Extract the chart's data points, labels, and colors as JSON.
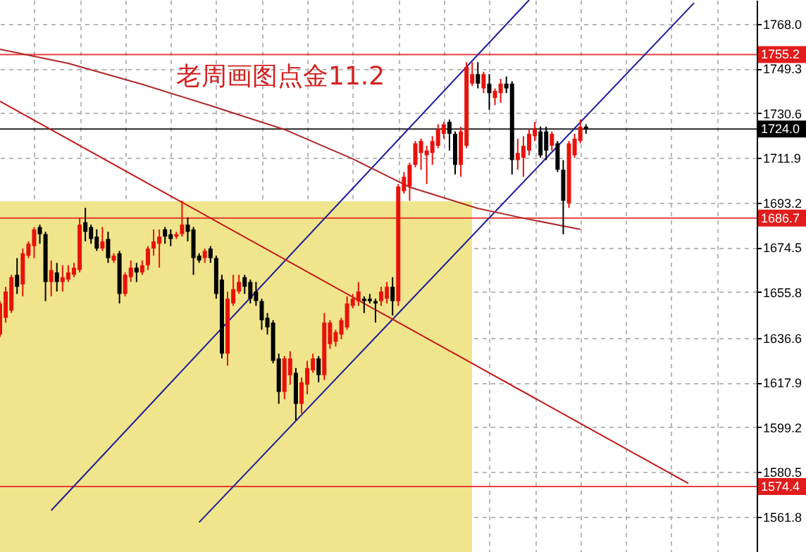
{
  "chart_data": {
    "type": "candlestick",
    "title": "老周画图点金11.2",
    "categories": [
      null,
      null,
      null,
      null,
      null,
      null,
      null,
      null,
      null,
      null,
      null,
      null,
      null,
      null,
      null,
      null,
      null,
      null,
      null,
      null,
      null,
      null,
      null,
      null,
      null,
      null,
      null,
      null,
      null,
      null,
      null,
      null,
      null,
      null,
      null,
      null,
      null,
      null,
      null,
      null,
      null,
      null,
      null,
      null,
      null,
      null,
      null,
      null,
      null,
      null,
      null,
      null,
      null,
      null,
      null,
      null,
      null,
      null,
      null,
      null,
      null,
      null,
      null,
      null,
      null,
      null,
      null,
      null,
      null,
      null,
      null,
      null,
      null,
      null,
      null,
      null,
      null,
      null,
      null,
      null,
      null,
      null,
      null,
      null,
      null,
      null,
      null,
      null,
      null,
      null,
      null,
      null,
      null,
      null,
      null,
      null,
      null,
      null,
      null,
      null,
      null,
      null,
      null,
      null,
      null,
      null,
      null,
      null,
      null,
      null,
      null,
      null,
      null,
      null,
      null,
      null,
      null,
      null,
      null,
      null,
      null,
      null,
      null,
      null,
      null,
      null,
      null,
      null,
      null,
      null,
      null,
      null,
      null,
      null
    ],
    "ohlc": [
      [
        1638,
        1652,
        1637,
        1651
      ],
      [
        1645,
        1658,
        1643,
        1656
      ],
      [
        1648,
        1663,
        1647,
        1662
      ],
      [
        1663,
        1670,
        1655,
        1658
      ],
      [
        1659,
        1674,
        1654,
        1672
      ],
      [
        1671,
        1677,
        1670,
        1676
      ],
      [
        1675,
        1683,
        1670,
        1682
      ],
      [
        1683,
        1684,
        1676,
        1680
      ],
      [
        1680,
        1681,
        1652,
        1660
      ],
      [
        1660,
        1669,
        1654,
        1665
      ],
      [
        1664,
        1668,
        1656,
        1660
      ],
      [
        1660,
        1667,
        1656,
        1662
      ],
      [
        1661,
        1667,
        1660,
        1664
      ],
      [
        1663,
        1668,
        1662,
        1666
      ],
      [
        1665,
        1687,
        1664,
        1684
      ],
      [
        1685,
        1691,
        1677,
        1681
      ],
      [
        1683,
        1684,
        1676,
        1678
      ],
      [
        1679,
        1682,
        1673,
        1674
      ],
      [
        1674,
        1683,
        1673,
        1677
      ],
      [
        1678,
        1681,
        1668,
        1670
      ],
      [
        1669,
        1672,
        1668,
        1671
      ],
      [
        1672,
        1673,
        1651,
        1655
      ],
      [
        1655,
        1664,
        1654,
        1663
      ],
      [
        1662,
        1669,
        1660,
        1666
      ],
      [
        1666,
        1668,
        1660,
        1664
      ],
      [
        1664,
        1669,
        1663,
        1667
      ],
      [
        1667,
        1675,
        1665,
        1674
      ],
      [
        1674,
        1682,
        1671,
        1677
      ],
      [
        1676,
        1682,
        1666,
        1679
      ],
      [
        1682,
        1683,
        1676,
        1679
      ],
      [
        1680,
        1682,
        1675,
        1678
      ],
      [
        1679,
        1681,
        1678,
        1680
      ],
      [
        1680,
        1694,
        1679,
        1684
      ],
      [
        1684,
        1687,
        1677,
        1681
      ],
      [
        1682,
        1683,
        1663,
        1670
      ],
      [
        1671,
        1672,
        1668,
        1669
      ],
      [
        1670,
        1674,
        1668,
        1673
      ],
      [
        1674,
        1675,
        1668,
        1670
      ],
      [
        1670,
        1671,
        1653,
        1655
      ],
      [
        1661,
        1663,
        1628,
        1630
      ],
      [
        1630,
        1656,
        1625,
        1653
      ],
      [
        1651,
        1663,
        1650,
        1657
      ],
      [
        1656,
        1663,
        1655,
        1660
      ],
      [
        1662,
        1663,
        1655,
        1658
      ],
      [
        1660,
        1661,
        1651,
        1653
      ],
      [
        1656,
        1660,
        1650,
        1652
      ],
      [
        1652,
        1653,
        1640,
        1644
      ],
      [
        1645,
        1647,
        1638,
        1641
      ],
      [
        1643,
        1644,
        1626,
        1627
      ],
      [
        1628,
        1630,
        1609,
        1614
      ],
      [
        1614,
        1629,
        1611,
        1628
      ],
      [
        1621,
        1631,
        1617,
        1628
      ],
      [
        1622,
        1624,
        1602,
        1609
      ],
      [
        1609,
        1620,
        1605,
        1618
      ],
      [
        1617,
        1627,
        1613,
        1624
      ],
      [
        1623,
        1630,
        1622,
        1628
      ],
      [
        1628,
        1629,
        1618,
        1621
      ],
      [
        1621,
        1647,
        1619,
        1643
      ],
      [
        1634,
        1644,
        1632,
        1643
      ],
      [
        1635,
        1640,
        1633,
        1639
      ],
      [
        1638,
        1645,
        1636,
        1644
      ],
      [
        1641,
        1654,
        1640,
        1651
      ],
      [
        1650,
        1655,
        1649,
        1653
      ],
      [
        1652,
        1660,
        1650,
        1656
      ],
      [
        1653,
        1654,
        1647,
        1652
      ],
      [
        1653,
        1655,
        1651,
        1652
      ],
      [
        1652,
        1653,
        1643,
        1651
      ],
      [
        1652,
        1658,
        1650,
        1656
      ],
      [
        1653,
        1660,
        1651,
        1658
      ],
      [
        1658,
        1662,
        1646,
        1652
      ],
      [
        1652,
        1701,
        1650,
        1700
      ],
      [
        1698,
        1706,
        1697,
        1704
      ],
      [
        1700,
        1710,
        1694,
        1709
      ],
      [
        1709,
        1719,
        1708,
        1718
      ],
      [
        1714,
        1720,
        1707,
        1719
      ],
      [
        1713,
        1717,
        1701,
        1715
      ],
      [
        1714,
        1721,
        1709,
        1719
      ],
      [
        1717,
        1726,
        1716,
        1724
      ],
      [
        1722,
        1727,
        1720,
        1726
      ],
      [
        1727,
        1728,
        1715,
        1722
      ],
      [
        1722,
        1723,
        1705,
        1709
      ],
      [
        1709,
        1725,
        1704,
        1723
      ],
      [
        1717,
        1752,
        1716,
        1750
      ],
      [
        1743,
        1752,
        1742,
        1747
      ],
      [
        1747,
        1752,
        1741,
        1743
      ],
      [
        1741,
        1748,
        1739,
        1747
      ],
      [
        1743,
        1747,
        1732,
        1739
      ],
      [
        1737,
        1741,
        1734,
        1740
      ],
      [
        1739,
        1745,
        1735,
        1743
      ],
      [
        1743,
        1746,
        1739,
        1741
      ],
      [
        1743,
        1744,
        1705,
        1711
      ],
      [
        1711,
        1720,
        1707,
        1714
      ],
      [
        1712,
        1721,
        1704,
        1717
      ],
      [
        1715,
        1724,
        1713,
        1722
      ],
      [
        1721,
        1727,
        1719,
        1724
      ],
      [
        1723,
        1725,
        1712,
        1713
      ],
      [
        1723,
        1725,
        1711,
        1715
      ],
      [
        1717,
        1723,
        1715,
        1722
      ],
      [
        1718,
        1719,
        1706,
        1707
      ],
      [
        1707,
        1711,
        1680,
        1694
      ],
      [
        1693,
        1719,
        1691,
        1718
      ],
      [
        1713,
        1722,
        1712,
        1720
      ],
      [
        1719,
        1728,
        1718,
        1725
      ],
      [
        1725,
        1726,
        1722,
        1724
      ],
      null,
      null,
      null,
      null,
      null,
      null,
      null,
      null,
      null,
      null,
      null,
      null,
      null,
      null,
      null,
      null,
      null,
      null,
      null,
      null,
      null,
      null,
      null,
      null,
      null,
      null,
      null,
      null,
      null,
      null
    ],
    "colors": [
      "#e8120c",
      "#e8120c",
      "#e8120c",
      "#000000",
      "#e8120c",
      "#e8120c",
      "#e8120c",
      "#000000",
      "#000000",
      "#e8120c",
      "#000000",
      "#e8120c",
      "#e8120c",
      "#e8120c",
      "#e8120c",
      "#000000",
      "#000000",
      "#000000",
      "#e8120c",
      "#000000",
      "#e8120c",
      "#000000",
      "#e8120c",
      "#e8120c",
      "#000000",
      "#e8120c",
      "#e8120c",
      "#e8120c",
      "#e8120c",
      "#000000",
      "#000000",
      "#e8120c",
      "#e8120c",
      "#000000",
      "#000000",
      "#000000",
      "#e8120c",
      "#000000",
      "#000000",
      "#000000",
      "#e8120c",
      "#e8120c",
      "#e8120c",
      "#000000",
      "#000000",
      "#000000",
      "#000000",
      "#000000",
      "#000000",
      "#000000",
      "#e8120c",
      "#e8120c",
      "#000000",
      "#e8120c",
      "#e8120c",
      "#e8120c",
      "#000000",
      "#e8120c",
      "#e8120c",
      "#e8120c",
      "#e8120c",
      "#e8120c",
      "#e8120c",
      "#e8120c",
      "#000000",
      "#000000",
      "#000000",
      "#e8120c",
      "#e8120c",
      "#000000",
      "#e8120c",
      "#e8120c",
      "#e8120c",
      "#e8120c",
      "#e8120c",
      "#e8120c",
      "#e8120c",
      "#e8120c",
      "#e8120c",
      "#000000",
      "#000000",
      "#e8120c",
      "#e8120c",
      "#e8120c",
      "#000000",
      "#e8120c",
      "#000000",
      "#e8120c",
      "#e8120c",
      "#000000",
      "#000000",
      "#e8120c",
      "#e8120c",
      "#e8120c",
      "#e8120c",
      "#000000",
      "#000000",
      "#e8120c",
      "#000000",
      "#000000",
      "#e8120c",
      "#e8120c",
      "#e8120c",
      "#000000",
      null,
      null,
      null,
      null,
      null,
      null,
      null,
      null,
      null,
      null,
      null,
      null,
      null,
      null,
      null,
      null,
      null,
      null,
      null,
      null,
      null,
      null,
      null,
      null,
      null,
      null,
      null,
      null,
      null,
      null
    ],
    "series": [
      {
        "type": "line",
        "color": "#1c1c9a",
        "values": [
          null,
          null,
          null,
          null,
          null,
          null,
          null,
          null,
          null,
          1564.4,
          null,
          null,
          null,
          null,
          null,
          null,
          null,
          null,
          null,
          null,
          null,
          null,
          null,
          null,
          null,
          null,
          null,
          null,
          null,
          null,
          null,
          null,
          null,
          null,
          null,
          null,
          null,
          null,
          null,
          null,
          null,
          null,
          null,
          null,
          null,
          null,
          null,
          null,
          null,
          null,
          null,
          null,
          null,
          null,
          null,
          null,
          null,
          null,
          null,
          null,
          null,
          null,
          null,
          null,
          null,
          null,
          null,
          null,
          null,
          null,
          null,
          null,
          null,
          null,
          null,
          null,
          null,
          null,
          null,
          null,
          null,
          null,
          null,
          null,
          null,
          null,
          null,
          null,
          null,
          null,
          null,
          null,
          null,
          1778,
          null,
          null,
          null,
          null,
          null,
          null,
          null,
          null,
          null,
          null,
          null,
          null,
          null,
          null,
          null,
          null,
          null,
          null,
          null,
          null,
          null,
          null,
          null,
          null,
          null,
          null,
          null,
          null,
          null,
          null,
          null,
          null,
          null,
          null,
          null,
          null,
          null,
          null,
          null,
          null
        ]
      },
      {
        "type": "line",
        "color": "#1c1c9a",
        "values": [
          null,
          null,
          null,
          null,
          null,
          null,
          null,
          null,
          null,
          null,
          null,
          null,
          null,
          null,
          null,
          null,
          null,
          null,
          null,
          null,
          null,
          null,
          null,
          null,
          null,
          null,
          null,
          null,
          null,
          null,
          null,
          null,
          null,
          null,
          null,
          1559.4,
          null,
          null,
          null,
          null,
          null,
          null,
          null,
          null,
          null,
          null,
          null,
          null,
          null,
          null,
          null,
          null,
          null,
          null,
          null,
          null,
          null,
          null,
          null,
          null,
          null,
          null,
          null,
          null,
          null,
          null,
          null,
          null,
          null,
          null,
          null,
          null,
          null,
          null,
          null,
          null,
          null,
          null,
          null,
          null,
          null,
          null,
          null,
          null,
          null,
          null,
          null,
          null,
          null,
          null,
          null,
          null,
          null,
          null,
          null,
          null,
          null,
          null,
          null,
          null,
          null,
          null,
          null,
          null,
          null,
          null,
          null,
          null,
          null,
          null,
          null,
          null,
          null,
          null,
          null,
          null,
          null,
          null,
          null,
          null,
          null,
          null,
          1776.8,
          null,
          null,
          null,
          null,
          null,
          null,
          null,
          null,
          null,
          null,
          null
        ]
      },
      {
        "type": "line",
        "color": "#c41818",
        "values": [
          1735.6,
          null,
          null,
          null,
          null,
          null,
          null,
          null,
          null,
          null,
          null,
          null,
          null,
          null,
          null,
          null,
          null,
          null,
          null,
          null,
          null,
          null,
          null,
          null,
          null,
          null,
          null,
          null,
          null,
          null,
          null,
          null,
          null,
          null,
          null,
          null,
          null,
          null,
          null,
          null,
          null,
          null,
          null,
          null,
          null,
          null,
          null,
          null,
          null,
          null,
          null,
          null,
          null,
          null,
          null,
          null,
          null,
          null,
          null,
          null,
          null,
          null,
          null,
          null,
          null,
          null,
          null,
          null,
          null,
          null,
          null,
          null,
          null,
          null,
          null,
          null,
          null,
          null,
          null,
          null,
          null,
          null,
          null,
          null,
          null,
          null,
          null,
          null,
          null,
          null,
          null,
          null,
          null,
          null,
          null,
          null,
          null,
          null,
          null,
          null,
          null,
          null,
          null,
          null,
          null,
          null,
          null,
          null,
          null,
          null,
          null,
          null,
          null,
          null,
          null,
          null,
          null,
          null,
          null,
          null,
          null,
          1575.7,
          null,
          null,
          null,
          null,
          null,
          null,
          null,
          null,
          null,
          null,
          null,
          null
        ]
      },
      {
        "type": "line",
        "color": "#b02828",
        "values": [
          1757.4,
          null,
          null,
          null,
          null,
          null,
          null,
          null,
          null,
          null,
          null,
          null,
          1751.5,
          null,
          null,
          null,
          null,
          null,
          null,
          null,
          null,
          null,
          null,
          null,
          null,
          1742.7,
          null,
          null,
          null,
          null,
          null,
          null,
          null,
          null,
          null,
          null,
          null,
          1733.8,
          null,
          null,
          null,
          null,
          null,
          null,
          null,
          null,
          null,
          null,
          null,
          null,
          1723.8,
          null,
          null,
          null,
          null,
          null,
          null,
          null,
          null,
          null,
          null,
          null,
          1711.5,
          null,
          null,
          null,
          null,
          null,
          null,
          null,
          null,
          null,
          1699.7,
          null,
          null,
          null,
          null,
          null,
          null,
          null,
          null,
          null,
          null,
          null,
          1690.8,
          null,
          null,
          null,
          null,
          null,
          null,
          null,
          1686.7,
          null,
          null,
          null,
          null,
          null,
          null,
          null,
          null,
          null,
          1682,
          null,
          null,
          null,
          null,
          null,
          null,
          null,
          null,
          null,
          null,
          null,
          null,
          null,
          null,
          null,
          null,
          null,
          null,
          null,
          null,
          null,
          null,
          null,
          null,
          null,
          null,
          null,
          null,
          null,
          null,
          null
        ]
      }
    ],
    "ref_lines": [
      {
        "axis": "y",
        "value": 1755.2,
        "label": "1755.2",
        "color": "#e01c1c"
      },
      {
        "axis": "y",
        "value": 1724.0,
        "label": "1724.0",
        "color": "#000000"
      },
      {
        "axis": "y",
        "value": 1686.7,
        "label": "1686.7",
        "color": "#e01c1c"
      },
      {
        "axis": "y",
        "value": 1574.4,
        "label": "1574.4",
        "color": "#e01c1c"
      }
    ],
    "ylim": [
      1547,
      1778
    ],
    "yticks": [
      {
        "value": 1768,
        "label": "1768.0"
      },
      1749.3,
      1730.6,
      1711.9,
      1693.2,
      1674.5,
      1655.8,
      1636.6,
      1617.9,
      1599.2,
      1580.5,
      1561.8
    ],
    "grid": true
  }
}
